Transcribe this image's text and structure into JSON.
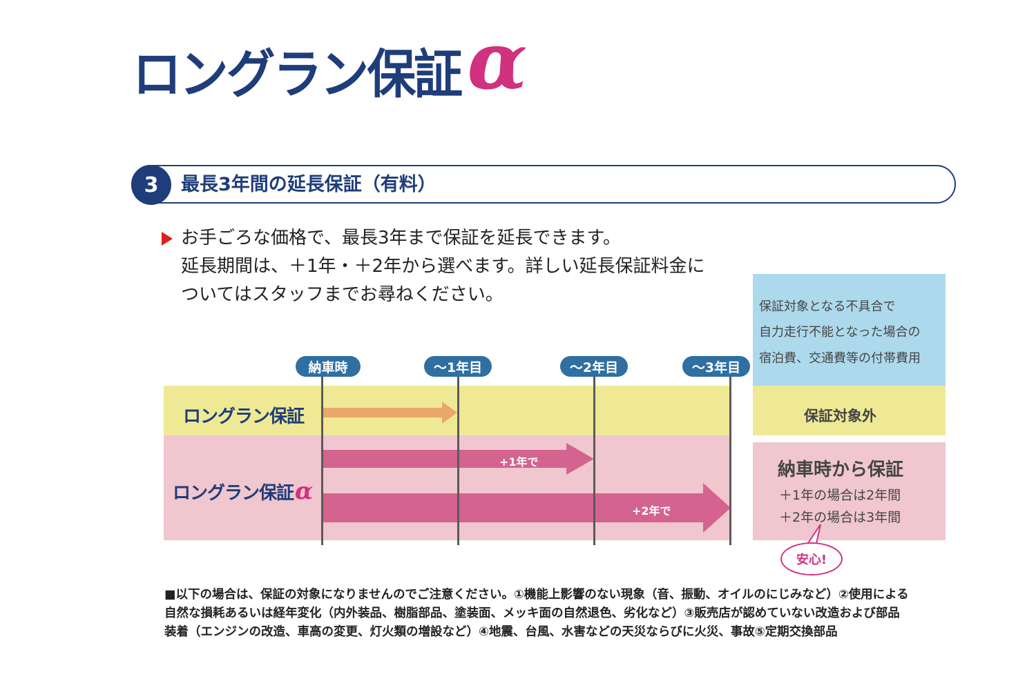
{
  "title": {
    "text": "ロングラン保証",
    "alpha": "α"
  },
  "section": {
    "number": "3",
    "title": "最長3年間の延長保証（有料）"
  },
  "intro": {
    "lines": [
      "お手ごろな価格で、最長3年まで保証を延長できます。",
      "延長期間は、＋1年・＋2年から選べます。詳しい延長保証料金に",
      "ついてはスタッフまでお尋ねください。"
    ]
  },
  "timeline": {
    "markers": [
      "納車時",
      "～1年目",
      "～2年目",
      "～3年目"
    ]
  },
  "rows": {
    "standard": {
      "label": "ロングラン保証",
      "bar_years": 1
    },
    "alpha": {
      "label": "ロングラン保証",
      "alpha": "α",
      "arrows": [
        {
          "text": "+1年で",
          "years": 2
        },
        {
          "text": "+2年で",
          "years": 3
        }
      ]
    }
  },
  "side": {
    "coverage": [
      "保証対象となる不具合で",
      "自力走行不能となった場合の",
      "宿泊費、交通費等の付帯費用"
    ],
    "standard": "保証対象外",
    "alpha_main": "納車時から保証",
    "alpha_sub": [
      "＋1年の場合は2年間",
      "＋2年の場合は3年間"
    ],
    "bubble": "安心!"
  },
  "notes": [
    "■以下の場合は、保証の対象になりませんのでご注意ください。①機能上影響のない現象（音、振動、オイルのにじみなど）②使用による",
    "自然な損耗あるいは経年変化（内外装品、樹脂部品、塗装面、メッキ面の自然退色、劣化など）③販売店が認めていない改造および部品",
    "装着（エンジンの改造、車高の変更、灯火類の増設など）④地震、台風、水害などの天災ならびに火災、事故⑤定期交換部品"
  ],
  "colors": {
    "navy": "#1f3d7a",
    "magenta": "#d1317e",
    "pill_blue": "#2f6fa1",
    "yellow_band": "#efe995",
    "pink_band": "#f0c6cf",
    "blue_panel": "#add9ec",
    "orange_arrow": "#eaa76a",
    "pink_arrow": "#d4638f"
  }
}
